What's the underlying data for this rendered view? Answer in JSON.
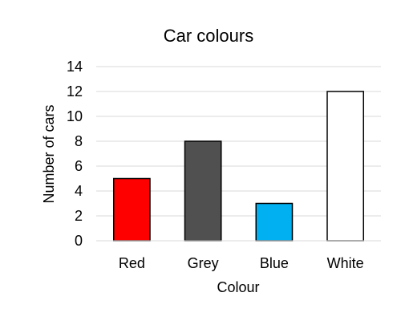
{
  "chart_data": {
    "type": "bar",
    "title": "Car colours",
    "xlabel": "Colour",
    "ylabel": "Number of cars",
    "categories": [
      "Red",
      "Grey",
      "Blue",
      "White"
    ],
    "values": [
      5,
      8,
      3,
      12
    ],
    "colors": [
      "#ff0000",
      "#505050",
      "#00b0f0",
      "#ffffff"
    ],
    "ylim": [
      0,
      14
    ],
    "yticks": [
      "0",
      "2",
      "4",
      "6",
      "8",
      "10",
      "12",
      "14"
    ],
    "grid": true,
    "legend": "none"
  }
}
